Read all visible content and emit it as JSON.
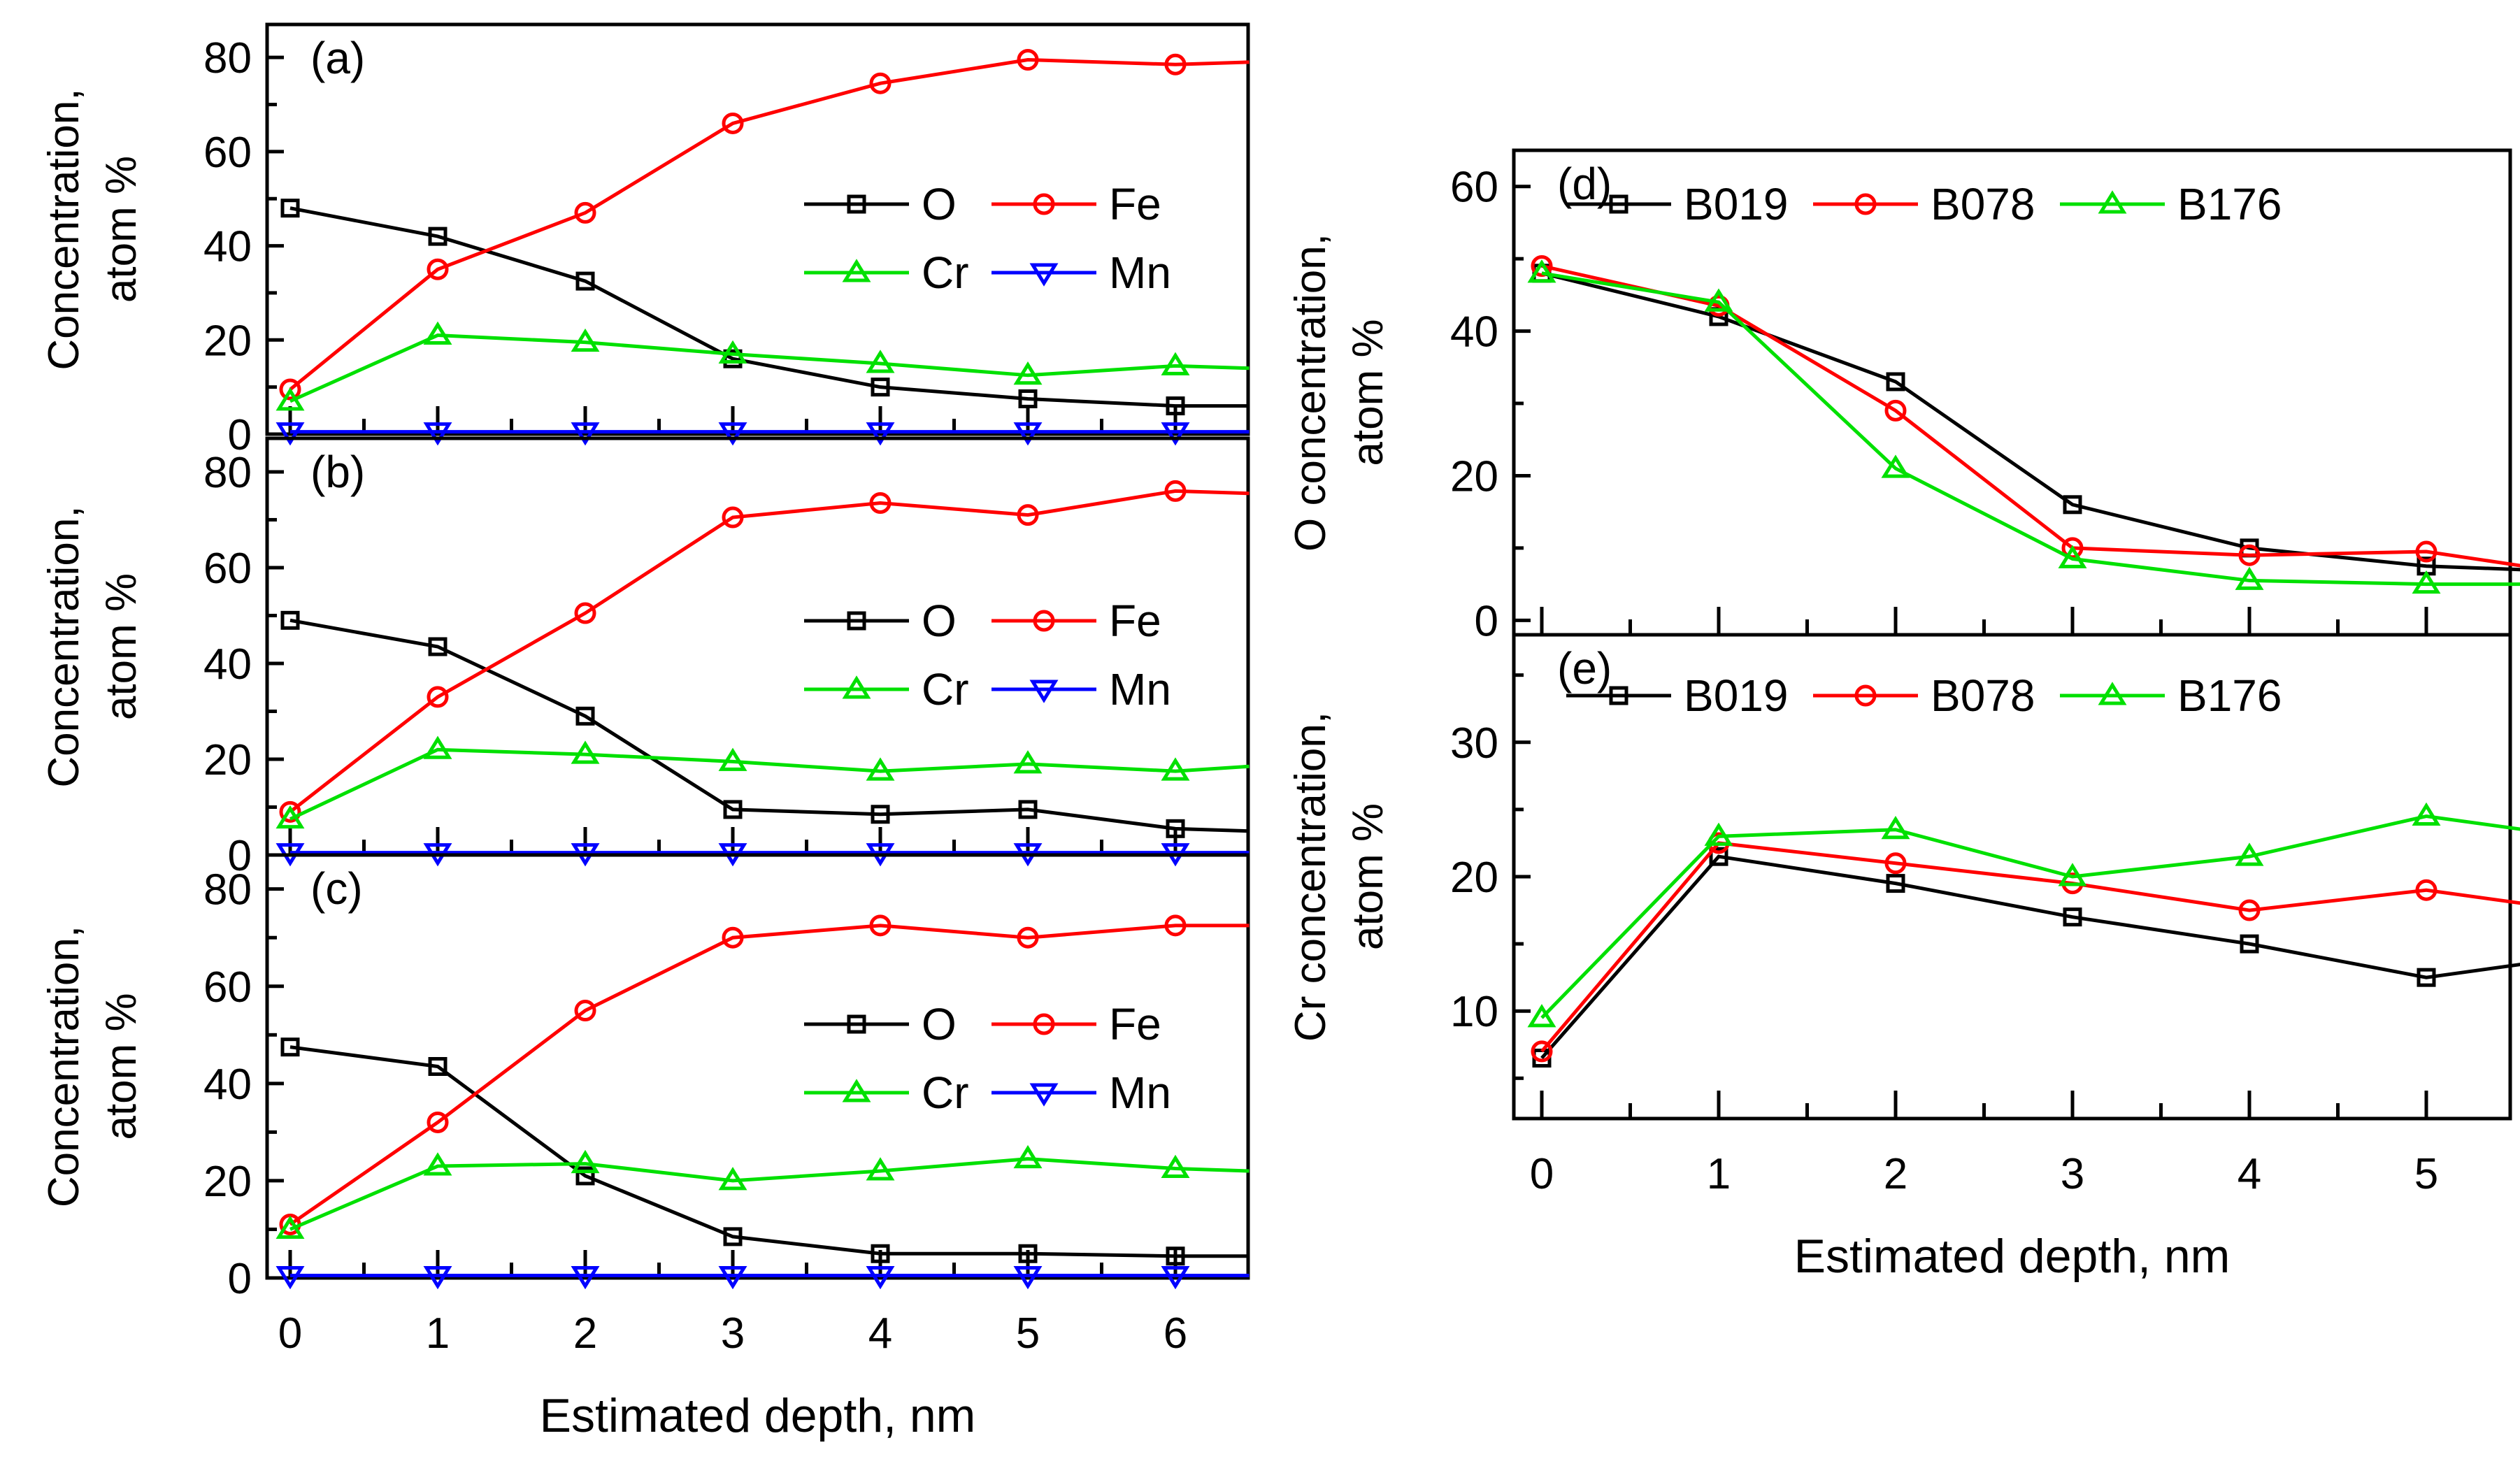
{
  "colors": {
    "O": "#000000",
    "Fe": "#ff0000",
    "Cr": "#00e000",
    "Mn": "#0000ff"
  },
  "chart_data": [
    {
      "type": "line",
      "panel": "a",
      "tag": "(a)",
      "ylabel": [
        "Concentration,",
        "atom %"
      ],
      "xlim": [
        -0.1,
        6.5
      ],
      "ylim": [
        0,
        87
      ],
      "yticks": [
        0,
        20,
        40,
        60,
        80
      ],
      "xticks": [],
      "x": [
        0,
        1,
        2,
        3,
        4,
        5,
        6,
        6.5
      ],
      "legend": [
        [
          "O",
          "Fe"
        ],
        [
          "Cr",
          "Mn"
        ]
      ],
      "series": [
        {
          "name": "O",
          "marker": "square",
          "values": [
            48,
            42,
            32.5,
            16,
            10,
            7.5,
            6,
            6
          ]
        },
        {
          "name": "Fe",
          "marker": "circle",
          "values": [
            9.5,
            35,
            47,
            66,
            74.5,
            79.5,
            78.5,
            79
          ]
        },
        {
          "name": "Cr",
          "marker": "triangle",
          "values": [
            7,
            21,
            19.5,
            17,
            15,
            12.5,
            14.5,
            14
          ]
        },
        {
          "name": "Mn",
          "marker": "invtriangle",
          "values": [
            0.5,
            0.5,
            0.5,
            0.5,
            0.5,
            0.5,
            0.5,
            0.5
          ]
        }
      ]
    },
    {
      "type": "line",
      "panel": "b",
      "tag": "(b)",
      "ylabel": [
        "Concentration,",
        "atom %"
      ],
      "xlim": [
        -0.1,
        6.5
      ],
      "ylim": [
        0,
        87
      ],
      "yticks": [
        0,
        20,
        40,
        60,
        80
      ],
      "xticks": [],
      "x": [
        0,
        1,
        2,
        3,
        4,
        5,
        6,
        6.5
      ],
      "legend": [
        [
          "O",
          "Fe"
        ],
        [
          "Cr",
          "Mn"
        ]
      ],
      "series": [
        {
          "name": "O",
          "marker": "square",
          "values": [
            49,
            43.5,
            29,
            9.5,
            8.5,
            9.5,
            5.5,
            5
          ]
        },
        {
          "name": "Fe",
          "marker": "circle",
          "values": [
            9,
            33,
            50.5,
            70.5,
            73.5,
            71,
            76,
            75.5
          ]
        },
        {
          "name": "Cr",
          "marker": "triangle",
          "values": [
            7.5,
            22,
            21,
            19.5,
            17.5,
            19,
            17.5,
            18.5
          ]
        },
        {
          "name": "Mn",
          "marker": "invtriangle",
          "values": [
            0.5,
            0.5,
            0.5,
            0.5,
            0.5,
            0.5,
            0.5,
            0.5
          ]
        }
      ]
    },
    {
      "type": "line",
      "panel": "c",
      "tag": "(c)",
      "ylabel": [
        "Concentration,",
        "atom %"
      ],
      "xlim": [
        -0.1,
        6.5
      ],
      "ylim": [
        0,
        87
      ],
      "yticks": [
        0,
        20,
        40,
        60,
        80
      ],
      "xticks": [
        0,
        1,
        2,
        3,
        4,
        5,
        6
      ],
      "xlabel": "Estimated depth, nm",
      "x": [
        0,
        1,
        2,
        3,
        4,
        5,
        6,
        6.5
      ],
      "legend": [
        [
          "O",
          "Fe"
        ],
        [
          "Cr",
          "Mn"
        ]
      ],
      "series": [
        {
          "name": "O",
          "marker": "square",
          "values": [
            47.5,
            43.5,
            21,
            8.5,
            5,
            5,
            4.5,
            4.5
          ]
        },
        {
          "name": "Fe",
          "marker": "circle",
          "values": [
            11,
            32,
            55,
            70,
            72.5,
            70,
            72.5,
            72.5
          ]
        },
        {
          "name": "Cr",
          "marker": "triangle",
          "values": [
            10,
            23,
            23.5,
            20,
            22,
            24.5,
            22.5,
            22
          ]
        },
        {
          "name": "Mn",
          "marker": "invtriangle",
          "values": [
            0.5,
            0.5,
            0.5,
            0.5,
            0.5,
            0.5,
            0.5,
            0.5
          ]
        }
      ]
    },
    {
      "type": "line",
      "panel": "d",
      "tag": "(d)",
      "ylabel": [
        "O concentration,",
        "atom %"
      ],
      "xlim": [
        -0.1,
        5.55
      ],
      "ylim": [
        -2,
        65
      ],
      "yticks": [
        0,
        20,
        40,
        60
      ],
      "xticks": [],
      "x": [
        0,
        1,
        2,
        3,
        4,
        5,
        5.55
      ],
      "legend": [
        [
          "B019",
          "B078",
          "B176"
        ]
      ],
      "series": [
        {
          "name": "B019",
          "color": "#000000",
          "marker": "square",
          "values": [
            48,
            42,
            33,
            16,
            10,
            7.5,
            7
          ]
        },
        {
          "name": "B078",
          "color": "#ff0000",
          "marker": "circle",
          "values": [
            49,
            43.5,
            29,
            10,
            9,
            9.5,
            7.5
          ]
        },
        {
          "name": "B176",
          "color": "#00e000",
          "marker": "triangle",
          "values": [
            48,
            44,
            21,
            8.5,
            5.5,
            5,
            5
          ]
        }
      ]
    },
    {
      "type": "line",
      "panel": "e",
      "tag": "(e)",
      "ylabel": [
        "Cr concentration,",
        "atom %"
      ],
      "xlim": [
        -0.1,
        5.55
      ],
      "ylim": [
        2,
        38
      ],
      "yticks": [
        10,
        20,
        30
      ],
      "xticks": [
        0,
        1,
        2,
        3,
        4,
        5
      ],
      "xlabel": "Estimated depth, nm",
      "x": [
        0,
        1,
        2,
        3,
        4,
        5,
        5.55
      ],
      "legend": [
        [
          "B019",
          "B078",
          "B176"
        ]
      ],
      "series": [
        {
          "name": "B019",
          "color": "#000000",
          "marker": "square",
          "values": [
            6.5,
            21.5,
            19.5,
            17,
            15,
            12.5,
            13.5
          ]
        },
        {
          "name": "B078",
          "color": "#ff0000",
          "marker": "circle",
          "values": [
            7,
            22.5,
            21,
            19.5,
            17.5,
            19,
            18
          ]
        },
        {
          "name": "B176",
          "color": "#00e000",
          "marker": "triangle",
          "values": [
            9.5,
            23,
            23.5,
            20,
            21.5,
            24.5,
            23.5
          ]
        }
      ]
    }
  ]
}
